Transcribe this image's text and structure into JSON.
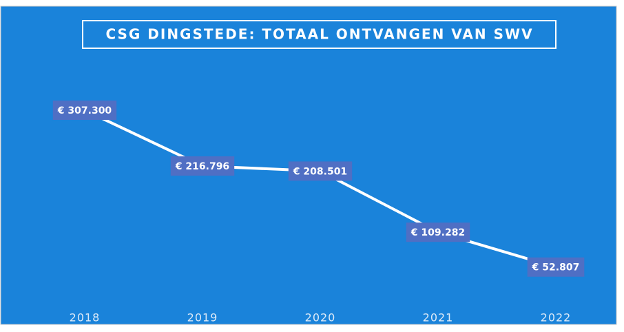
{
  "chart_data": {
    "type": "line",
    "title": "CSG DINGSTEDE: TOTAAL ONTVANGEN VAN SWV",
    "categories": [
      "2018",
      "2019",
      "2020",
      "2021",
      "2022"
    ],
    "series": [
      {
        "color": "#ffffff",
        "values": [
          307300,
          216796,
          208501,
          109282,
          52807
        ],
        "value_labels": [
          "€ 307.300",
          "€ 216.796",
          "€ 208.501",
          "€ 109.282",
          "€ 52.807"
        ]
      }
    ]
  }
}
